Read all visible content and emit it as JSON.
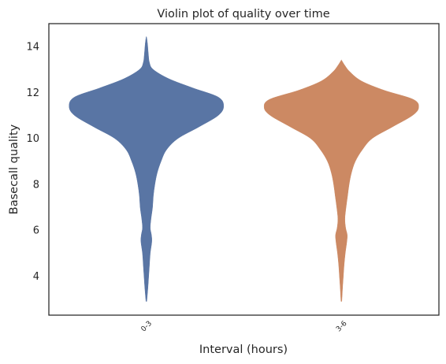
{
  "chart_data": {
    "type": "violin",
    "title": "Violin plot of quality over time",
    "xlabel": "Interval (hours)",
    "ylabel": "Basecall quality",
    "categories": [
      "0-3",
      "3-6"
    ],
    "ylim": [
      2.3,
      15.0
    ],
    "yticks": [
      4,
      6,
      8,
      10,
      12,
      14
    ],
    "ytick_labels": [
      "4",
      "6",
      "8",
      "10",
      "12",
      "14"
    ],
    "grid": false,
    "legend": "none",
    "series": [
      {
        "category": "0-3",
        "color": "#5975a4",
        "min": 2.9,
        "max": 14.4,
        "mode": 11.4,
        "density": [
          [
            2.9,
            0.005
          ],
          [
            3.5,
            0.02
          ],
          [
            4.0,
            0.03
          ],
          [
            4.5,
            0.04
          ],
          [
            5.0,
            0.05
          ],
          [
            5.5,
            0.07
          ],
          [
            5.8,
            0.065
          ],
          [
            6.1,
            0.05
          ],
          [
            6.5,
            0.06
          ],
          [
            7.0,
            0.08
          ],
          [
            7.5,
            0.09
          ],
          [
            8.0,
            0.11
          ],
          [
            8.5,
            0.14
          ],
          [
            9.0,
            0.19
          ],
          [
            9.5,
            0.26
          ],
          [
            10.0,
            0.41
          ],
          [
            10.5,
            0.68
          ],
          [
            11.0,
            0.93
          ],
          [
            11.4,
            1.0
          ],
          [
            11.8,
            0.93
          ],
          [
            12.2,
            0.6
          ],
          [
            12.6,
            0.29
          ],
          [
            13.0,
            0.09
          ],
          [
            13.3,
            0.04
          ],
          [
            13.7,
            0.025
          ],
          [
            14.1,
            0.015
          ],
          [
            14.4,
            0.003
          ]
        ]
      },
      {
        "category": "3-6",
        "color": "#cc8963",
        "min": 2.9,
        "max": 13.4,
        "mode": 11.35,
        "density": [
          [
            2.9,
            0.005
          ],
          [
            3.5,
            0.015
          ],
          [
            4.0,
            0.025
          ],
          [
            4.5,
            0.035
          ],
          [
            5.0,
            0.05
          ],
          [
            5.5,
            0.07
          ],
          [
            5.8,
            0.075
          ],
          [
            6.1,
            0.055
          ],
          [
            6.5,
            0.045
          ],
          [
            7.0,
            0.06
          ],
          [
            7.5,
            0.08
          ],
          [
            8.0,
            0.1
          ],
          [
            8.5,
            0.13
          ],
          [
            9.0,
            0.18
          ],
          [
            9.5,
            0.27
          ],
          [
            10.0,
            0.4
          ],
          [
            10.5,
            0.66
          ],
          [
            11.0,
            0.92
          ],
          [
            11.35,
            1.0
          ],
          [
            11.7,
            0.93
          ],
          [
            12.1,
            0.55
          ],
          [
            12.5,
            0.26
          ],
          [
            12.9,
            0.11
          ],
          [
            13.2,
            0.04
          ],
          [
            13.4,
            0.003
          ]
        ]
      }
    ]
  }
}
